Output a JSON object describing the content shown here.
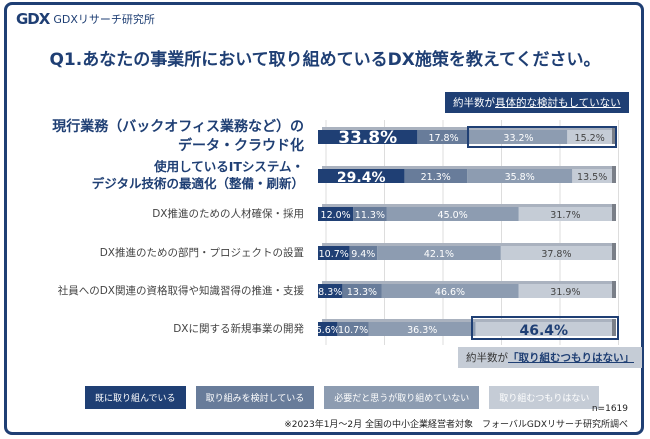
{
  "header": {
    "logo_mark": "GDX",
    "logo_text": "GDXリサーチ研究所"
  },
  "chart_data": {
    "type": "bar",
    "orientation": "horizontal",
    "stacked": true,
    "title": "Q1.あなたの事業所において取り組めているDX施策を教えてください。",
    "categories": [
      "現行業務（バックオフィス業務など）のデータ・クラウド化",
      "使用しているITシステム・デジタル技術の最適化（整備・刷新）",
      "DX推進のための人材確保・採用",
      "DX推進のための部門・プロジェクトの設置",
      "社員へのDX関連の資格取得や知識習得の推進・支援",
      "DXに関する新規事業の開発"
    ],
    "category_lines": [
      [
        "現行業務（バックオフィス業務など）の",
        "データ・クラウド化"
      ],
      [
        "使用しているITシステム・",
        "デジタル技術の最適化（整備・刷新）"
      ],
      [
        "DX推進のための人材確保・採用"
      ],
      [
        "DX推進のための部門・プロジェクトの設置"
      ],
      [
        "社員へのDX関連の資格取得や知識習得の推進・支援"
      ],
      [
        "DXに関する新規事業の開発"
      ]
    ],
    "series": [
      {
        "name": "既に取り組んでいる",
        "color": "#1f3f74",
        "values": [
          33.8,
          29.4,
          12.0,
          10.7,
          8.3,
          6.6
        ],
        "labels": [
          "33.8%",
          "29.4%",
          "12.0%",
          "10.7%",
          "8.3%",
          "6.6%"
        ]
      },
      {
        "name": "取り組みを検討している",
        "color": "#687c9a",
        "values": [
          17.8,
          21.3,
          11.3,
          9.4,
          13.3,
          10.7
        ],
        "labels": [
          "17.8%",
          "21.3%",
          "11.3%",
          "9.4%",
          "13.3%",
          "10.7%"
        ]
      },
      {
        "name": "必要だと思うが取り組めていない",
        "color": "#8d9cb1",
        "values": [
          33.2,
          35.8,
          45.0,
          42.1,
          46.6,
          36.3
        ],
        "labels": [
          "33.2%",
          "35.8%",
          "45.0%",
          "42.1%",
          "46.6%",
          "36.3%"
        ]
      },
      {
        "name": "取り組むつもりはない",
        "color": "#c5ccd6",
        "values": [
          15.2,
          13.5,
          31.7,
          37.8,
          31.9,
          46.4
        ],
        "labels": [
          "15.2%",
          "13.5%",
          "31.7%",
          "37.8%",
          "31.9%",
          "46.4%"
        ]
      }
    ],
    "xlim": [
      0,
      100
    ],
    "grid": true,
    "legend": "bottom"
  },
  "callouts": {
    "top": {
      "prefix": "約半数が",
      "emph": "具体的な検討もしていない"
    },
    "bottom": {
      "prefix": "約半数が",
      "emph": "「取り組むつもりはない」"
    }
  },
  "footer": {
    "n": "n=1619",
    "source": "※2023年1月～2月 全国の中小企業経営者対象　フォーバルGDXリサーチ研究所調べ"
  }
}
